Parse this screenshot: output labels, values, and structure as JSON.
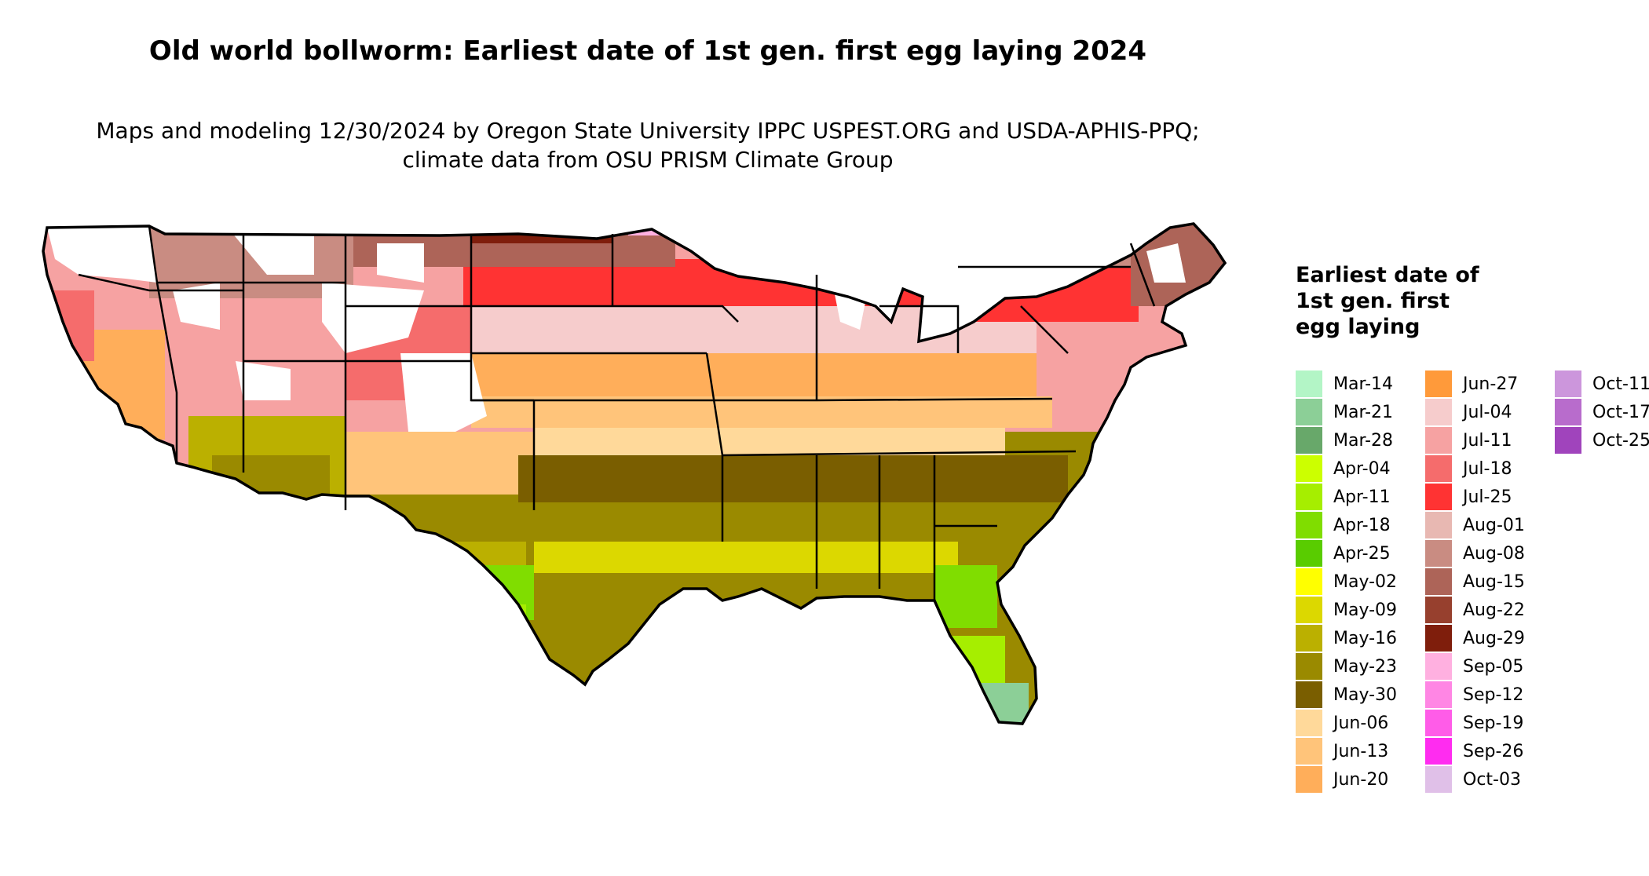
{
  "title": "Old world bollworm: Earliest date of 1st gen. first egg laying 2024",
  "subtitle": "Maps and modeling 12/30/2024 by Oregon State University IPPC USPEST.ORG and USDA-APHIS-PPQ; climate data from OSU PRISM Climate Group",
  "legend": {
    "title": "Earliest date of 1st gen. first egg laying",
    "entries": [
      {
        "label": "Mar-14",
        "color": "#b3f5c6"
      },
      {
        "label": "Mar-21",
        "color": "#8ccf97"
      },
      {
        "label": "Mar-28",
        "color": "#68a86a"
      },
      {
        "label": "Apr-04",
        "color": "#ccff00"
      },
      {
        "label": "Apr-11",
        "color": "#a6ee00"
      },
      {
        "label": "Apr-18",
        "color": "#80dd00"
      },
      {
        "label": "Apr-25",
        "color": "#59cc00"
      },
      {
        "label": "May-02",
        "color": "#ffff00"
      },
      {
        "label": "May-09",
        "color": "#dcd800"
      },
      {
        "label": "May-16",
        "color": "#bbb000"
      },
      {
        "label": "May-23",
        "color": "#9a8a00"
      },
      {
        "label": "May-30",
        "color": "#7a5e00"
      },
      {
        "label": "Jun-06",
        "color": "#ffd99a"
      },
      {
        "label": "Jun-13",
        "color": "#ffc47a"
      },
      {
        "label": "Jun-20",
        "color": "#ffae5a"
      },
      {
        "label": "Jun-27",
        "color": "#ff9a3a"
      },
      {
        "label": "Jul-04",
        "color": "#f6cccc"
      },
      {
        "label": "Jul-11",
        "color": "#f6a2a2"
      },
      {
        "label": "Jul-18",
        "color": "#f56c6c"
      },
      {
        "label": "Jul-25",
        "color": "#ff3333"
      },
      {
        "label": "Aug-01",
        "color": "#e8b8b2"
      },
      {
        "label": "Aug-08",
        "color": "#c98c82"
      },
      {
        "label": "Aug-15",
        "color": "#ad6458"
      },
      {
        "label": "Aug-22",
        "color": "#97402e"
      },
      {
        "label": "Aug-29",
        "color": "#7f1e0c"
      },
      {
        "label": "Sep-05",
        "color": "#ffb0e0"
      },
      {
        "label": "Sep-12",
        "color": "#ff86e4"
      },
      {
        "label": "Sep-19",
        "color": "#ff5ce8"
      },
      {
        "label": "Sep-26",
        "color": "#ff2cf0"
      },
      {
        "label": "Oct-03",
        "color": "#e0c0e8"
      },
      {
        "label": "Oct-11",
        "color": "#cc96dc"
      },
      {
        "label": "Oct-17",
        "color": "#b86ccc"
      },
      {
        "label": "Oct-25",
        "color": "#a044bc"
      }
    ]
  }
}
